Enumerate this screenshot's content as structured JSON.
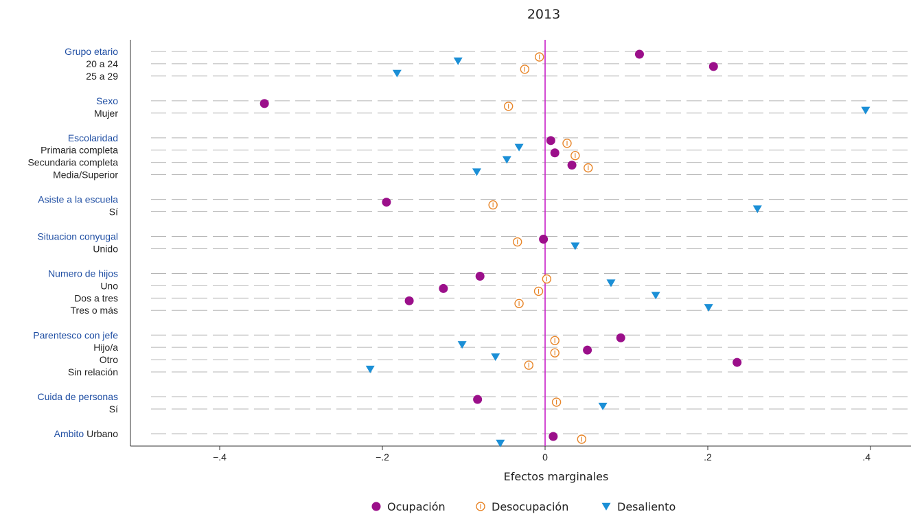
{
  "chart_data": {
    "type": "scatter",
    "title": "2013",
    "xlabel": "Efectos marginales",
    "xlim": [
      -0.4,
      0.4
    ],
    "x_ticks": [
      {
        "value": -0.4,
        "label": "−.4"
      },
      {
        "value": -0.2,
        "label": "−.2"
      },
      {
        "value": 0,
        "label": "0"
      },
      {
        "value": 0.2,
        "label": ".2"
      },
      {
        "value": 0.4,
        "label": ".4"
      }
    ],
    "zero_line_color": "#c81ec8",
    "legend_position": "bottom",
    "series": [
      {
        "name": "Ocupación",
        "marker": "filled-circle",
        "color": "#9b0f8a"
      },
      {
        "name": "Desocupación",
        "marker": "hollow-circle",
        "color": "#e8862a"
      },
      {
        "name": "Desaliento",
        "marker": "triangle-down",
        "color": "#1b8fd6"
      }
    ],
    "rows": [
      {
        "group": "Grupo etario",
        "label": "",
        "values": [
          0.116,
          -0.007,
          -0.107
        ]
      },
      {
        "group": "",
        "label": "20 a 24",
        "values": [
          0.207,
          -0.025,
          -0.182
        ]
      },
      {
        "group": "",
        "label": "25 a 29",
        "values": [
          null,
          null,
          null
        ]
      },
      {
        "group": "Sexo",
        "label": "",
        "values": [
          -0.345,
          -0.045,
          0.394
        ]
      },
      {
        "group": "",
        "label": "Mujer",
        "values": [
          null,
          null,
          null
        ]
      },
      {
        "group": "Escolaridad",
        "label": "",
        "values": [
          0.007,
          0.027,
          -0.032
        ]
      },
      {
        "group": "",
        "label": "Primaria completa",
        "values": [
          0.012,
          0.037,
          -0.047
        ]
      },
      {
        "group": "",
        "label": "Secundaria completa",
        "values": [
          0.033,
          0.053,
          -0.084
        ]
      },
      {
        "group": "",
        "label": "Media/Superior",
        "values": [
          null,
          null,
          null
        ]
      },
      {
        "group": "Asiste a la escuela",
        "label": "",
        "values": [
          -0.195,
          -0.064,
          0.261
        ]
      },
      {
        "group": "",
        "label": "Sí",
        "values": [
          null,
          null,
          null
        ]
      },
      {
        "group": "Situacion conyugal",
        "label": "",
        "values": [
          -0.002,
          -0.034,
          0.037
        ]
      },
      {
        "group": "",
        "label": "Unido",
        "values": [
          null,
          null,
          null
        ]
      },
      {
        "group": "Numero de hijos",
        "label": "",
        "values": [
          -0.08,
          0.002,
          0.081
        ]
      },
      {
        "group": "",
        "label": "Uno",
        "values": [
          -0.125,
          -0.008,
          0.136
        ]
      },
      {
        "group": "",
        "label": "Dos a tres",
        "values": [
          -0.167,
          -0.032,
          0.201
        ]
      },
      {
        "group": "",
        "label": "Tres o más",
        "values": [
          null,
          null,
          null
        ]
      },
      {
        "group": "Parentesco con jefe",
        "label": "",
        "values": [
          0.093,
          0.012,
          -0.102
        ]
      },
      {
        "group": "",
        "label": "Hijo/a",
        "values": [
          0.052,
          0.012,
          -0.061
        ]
      },
      {
        "group": "",
        "label": "Otro",
        "values": [
          0.236,
          -0.02,
          -0.215
        ]
      },
      {
        "group": "",
        "label": "Sin relación",
        "values": [
          null,
          null,
          null
        ]
      },
      {
        "group": "Cuida de personas",
        "label": "",
        "values": [
          -0.083,
          0.014,
          0.071
        ]
      },
      {
        "group": "",
        "label": "Sí",
        "values": [
          null,
          null,
          null
        ]
      },
      {
        "group": "Ambito",
        "label": "Urbano",
        "values": [
          0.01,
          0.045,
          -0.055
        ]
      }
    ]
  }
}
